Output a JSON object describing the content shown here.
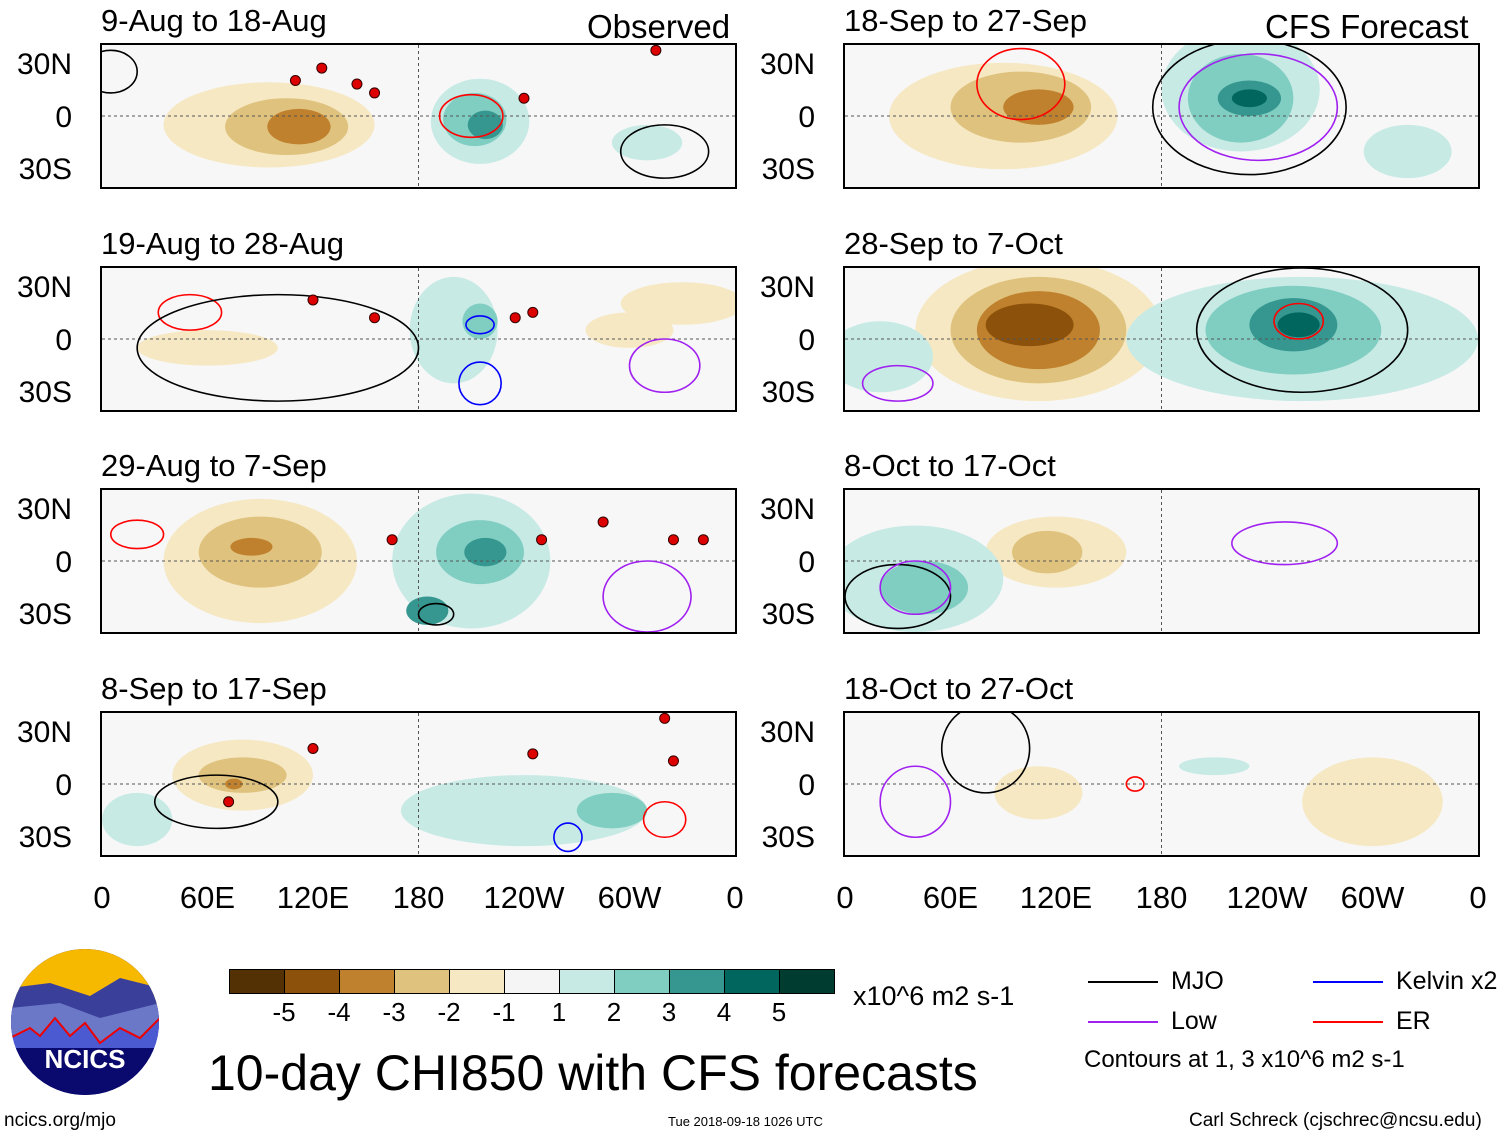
{
  "header": {
    "observed_label": "Observed",
    "forecast_label": "CFS Forecast"
  },
  "panels": {
    "left": [
      {
        "title": "9-Aug to 18-Aug"
      },
      {
        "title": "19-Aug to 28-Aug"
      },
      {
        "title": "29-Aug to 7-Sep"
      },
      {
        "title": "8-Sep to 17-Sep"
      }
    ],
    "right": [
      {
        "title": "18-Sep to 27-Sep"
      },
      {
        "title": "28-Sep to 7-Oct"
      },
      {
        "title": "8-Oct to 17-Oct"
      },
      {
        "title": "18-Oct to 27-Oct"
      }
    ]
  },
  "axes": {
    "lat_labels": [
      "30N",
      "0",
      "30S"
    ],
    "lon_labels": [
      "0",
      "60E",
      "120E",
      "180",
      "120W",
      "60W",
      "0"
    ]
  },
  "colorbar": {
    "colors": [
      "#543005",
      "#8c510a",
      "#bf812d",
      "#dfc27d",
      "#f6e8c3",
      "#f5f5f5",
      "#c7eae5",
      "#80cdc1",
      "#35978f",
      "#01665e",
      "#003c30"
    ],
    "tick_labels": [
      "-5",
      "-4",
      "-3",
      "-2",
      "-1",
      "1",
      "2",
      "3",
      "4",
      "5"
    ],
    "units": "x10^6 m2 s-1"
  },
  "legend": {
    "items": [
      {
        "label": "MJO",
        "color": "#000000"
      },
      {
        "label": "Kelvin x2",
        "color": "#0000ff"
      },
      {
        "label": "Low",
        "color": "#a020f0"
      },
      {
        "label": "ER",
        "color": "#ff0000"
      }
    ],
    "note": "Contours at 1, 3 x10^6 m2 s-1"
  },
  "logo": {
    "text": "NCICS"
  },
  "footer": {
    "title": "10-day CHI850 with CFS forecasts",
    "url": "ncics.org/mjo",
    "timestamp": "Tue 2018-09-18 1026 UTC",
    "credit": "Carl Schreck (cjschrec@ncsu.edu)"
  }
}
